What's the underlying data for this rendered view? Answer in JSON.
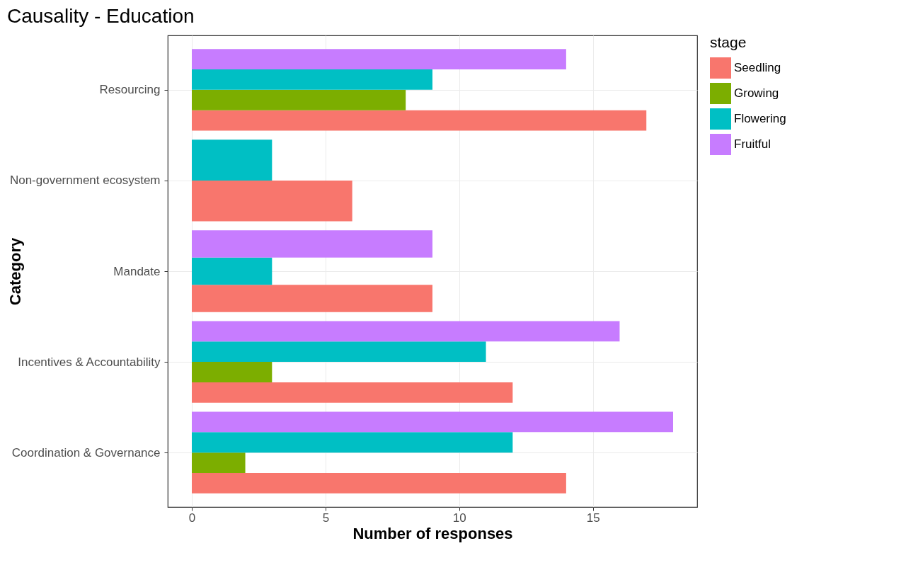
{
  "chart_data": {
    "type": "bar",
    "orientation": "horizontal",
    "title": "Causality - Education",
    "xlabel": "Number of responses",
    "ylabel": "Category",
    "legend_title": "stage",
    "legend": "right",
    "grid": true,
    "categories": [
      "Resourcing",
      "Non-government ecosystem",
      "Mandate",
      "Incentives & Accountability",
      "Coordination & Governance"
    ],
    "xlim": [
      -0.9,
      18.9
    ],
    "xticks": [
      0,
      5,
      10,
      15
    ],
    "series": [
      {
        "name": "Seedling",
        "color": "#f8766d",
        "values": [
          17,
          6,
          9,
          12,
          14
        ]
      },
      {
        "name": "Growing",
        "color": "#7cae00",
        "values": [
          8,
          null,
          null,
          3,
          2
        ]
      },
      {
        "name": "Flowering",
        "color": "#00bfc4",
        "values": [
          9,
          3,
          3,
          11,
          12
        ]
      },
      {
        "name": "Fruitful",
        "color": "#c77cff",
        "values": [
          14,
          null,
          9,
          16,
          18
        ]
      }
    ]
  }
}
